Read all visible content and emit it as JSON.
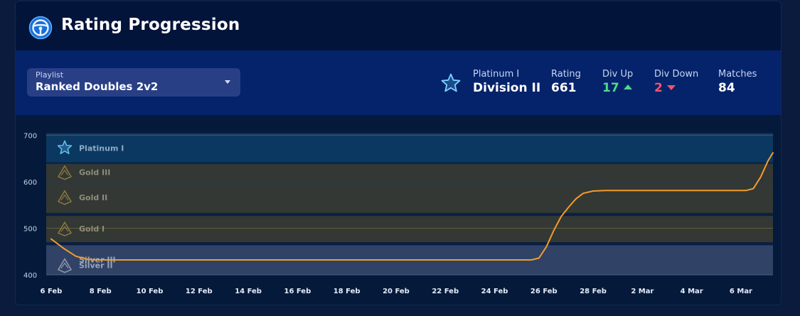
{
  "header": {
    "title": "Rating Progression",
    "icon": "steering-wheel-icon"
  },
  "playlist": {
    "label": "Playlist",
    "value": "Ranked Doubles 2v2"
  },
  "rank": {
    "tier": "Platinum I",
    "division": "Division II",
    "icon": "star-icon"
  },
  "stats": {
    "rating": {
      "label": "Rating",
      "value": "661"
    },
    "div_up": {
      "label": "Div Up",
      "value": "17"
    },
    "div_down": {
      "label": "Div Down",
      "value": "2"
    },
    "matches": {
      "label": "Matches",
      "value": "84"
    }
  },
  "colors": {
    "accent": "#f39c2b",
    "platinum_band": "#0c3a62",
    "gold_band": "#363a35",
    "silver_band": "#334567",
    "up": "#4ed98a",
    "down": "#f0546f"
  },
  "chart_data": {
    "type": "line",
    "ylim": [
      400,
      705
    ],
    "yticks": [
      400,
      500,
      600,
      700
    ],
    "xticks": [
      "6 Feb",
      "8 Feb",
      "10 Feb",
      "12 Feb",
      "14 Feb",
      "16 Feb",
      "18 Feb",
      "20 Feb",
      "22 Feb",
      "24 Feb",
      "26 Feb",
      "28 Feb",
      "2 Mar",
      "4 Mar",
      "6 Mar"
    ],
    "x_range": [
      -0.2,
      29.3
    ],
    "bands": [
      {
        "label": "Platinum I",
        "from": 640,
        "to": 705,
        "color": "#0c3a62",
        "icon": "star-icon"
      },
      {
        "label": "Gold III",
        "from": 600,
        "to": 640,
        "color": "#363a35",
        "icon": "gold-rank-icon"
      },
      {
        "label": "Gold II",
        "from": 533,
        "to": 600,
        "color": "#363a35",
        "icon": "gold-rank-icon"
      },
      {
        "label": "Gold I",
        "from": 470,
        "to": 528,
        "color": "#363a35",
        "icon": "gold-rank-icon"
      },
      {
        "label": "Silver III",
        "from": 400,
        "to": 465,
        "color": "#334567",
        "icon": "silver-rank-icon"
      },
      {
        "label": "Silver II",
        "from": 400,
        "to": 465,
        "color": "#334567",
        "icon": "silver-rank-icon"
      }
    ],
    "series": [
      {
        "color": "#f39c2b",
        "points": [
          [
            0,
            477
          ],
          [
            0.5,
            457
          ],
          [
            1,
            440
          ],
          [
            1.5,
            433
          ],
          [
            2,
            432
          ],
          [
            4,
            432
          ],
          [
            8,
            432
          ],
          [
            12,
            432
          ],
          [
            16,
            432
          ],
          [
            19.5,
            432
          ],
          [
            19.8,
            436
          ],
          [
            20.1,
            460
          ],
          [
            20.4,
            495
          ],
          [
            20.7,
            525
          ],
          [
            21.0,
            545
          ],
          [
            21.3,
            563
          ],
          [
            21.6,
            575
          ],
          [
            22.0,
            580
          ],
          [
            22.5,
            581
          ],
          [
            25,
            581
          ],
          [
            28.2,
            581
          ],
          [
            28.5,
            585
          ],
          [
            28.8,
            610
          ],
          [
            29.1,
            645
          ],
          [
            29.3,
            662
          ]
        ]
      }
    ]
  }
}
